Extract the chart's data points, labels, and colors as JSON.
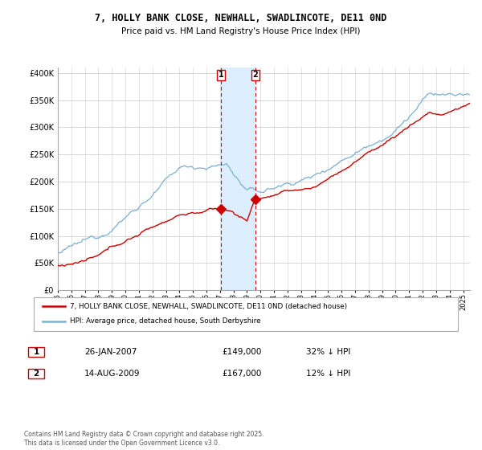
{
  "title": "7, HOLLY BANK CLOSE, NEWHALL, SWADLINCOTE, DE11 0ND",
  "subtitle": "Price paid vs. HM Land Registry's House Price Index (HPI)",
  "ylabel_ticks": [
    "£0",
    "£50K",
    "£100K",
    "£150K",
    "£200K",
    "£250K",
    "£300K",
    "£350K",
    "£400K"
  ],
  "ytick_values": [
    0,
    50000,
    100000,
    150000,
    200000,
    250000,
    300000,
    350000,
    400000
  ],
  "ylim": [
    0,
    410000
  ],
  "xlim_start": 1995.0,
  "xlim_end": 2025.5,
  "legend_line1": "7, HOLLY BANK CLOSE, NEWHALL, SWADLINCOTE, DE11 0ND (detached house)",
  "legend_line2": "HPI: Average price, detached house, South Derbyshire",
  "sale1_date": "26-JAN-2007",
  "sale1_price": "£149,000",
  "sale1_hpi": "32% ↓ HPI",
  "sale2_date": "14-AUG-2009",
  "sale2_price": "£167,000",
  "sale2_hpi": "12% ↓ HPI",
  "footer": "Contains HM Land Registry data © Crown copyright and database right 2025.\nThis data is licensed under the Open Government Licence v3.0.",
  "line_color_red": "#cc0000",
  "line_color_blue": "#7ab0d4",
  "shade_color": "#ddeeff",
  "vline1_x": 2007.07,
  "vline2_x": 2009.62,
  "sale1_year": 2007.07,
  "sale1_val": 149000,
  "sale2_year": 2009.62,
  "sale2_val": 167000,
  "plot_bg": "#ffffff"
}
